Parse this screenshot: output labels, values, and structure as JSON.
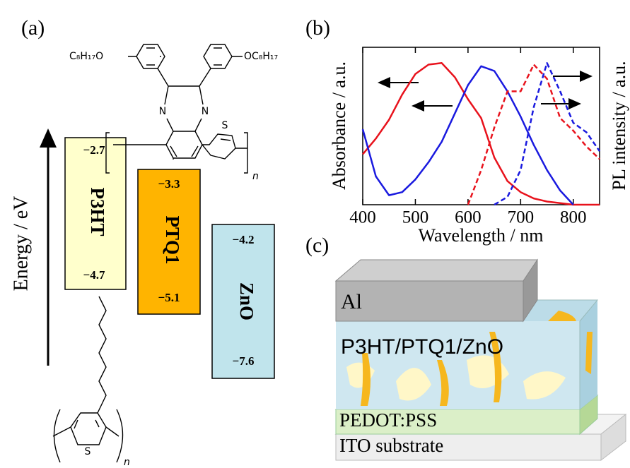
{
  "panel_a": {
    "label": "(a)",
    "energy_axis": "Energy / eV",
    "levels": [
      {
        "name": "P3HT",
        "lumo": "−2.7",
        "homo": "−4.7"
      },
      {
        "name": "PTQ1",
        "lumo": "−3.3",
        "homo": "−5.1"
      },
      {
        "name": "ZnO",
        "lumo": "−4.2",
        "homo": "−7.6"
      }
    ],
    "ptq1_structure": {
      "left_chain": "C₈H₁₇O",
      "right_chain": "OC₈H₁₇",
      "atoms": [
        "N",
        "N",
        "S"
      ],
      "repeat": "n"
    },
    "p3ht_structure": {
      "atoms": [
        "S"
      ],
      "repeat": "n"
    }
  },
  "panel_b": {
    "label": "(b)"
  },
  "chart_data": {
    "type": "line",
    "x_label": "Wavelength / nm",
    "y_label": "Absorbance / a.u.",
    "y2_label": "PL intensity / a.u.",
    "x": [
      400,
      425,
      450,
      475,
      500,
      525,
      550,
      575,
      600,
      625,
      650,
      675,
      700,
      725,
      750,
      775,
      800,
      825,
      850
    ],
    "xlim": [
      400,
      850
    ],
    "xticks": [
      400,
      500,
      600,
      700,
      800
    ],
    "ylim": [
      0,
      1
    ],
    "series": [
      {
        "color": "#e8121c",
        "dash": false,
        "values": [
          0.32,
          0.42,
          0.54,
          0.7,
          0.83,
          0.89,
          0.9,
          0.81,
          0.67,
          0.55,
          0.3,
          0.15,
          0.08,
          0.04,
          0.02,
          0.01,
          0,
          0,
          0
        ]
      },
      {
        "color": "#1a1adf",
        "dash": false,
        "values": [
          0.48,
          0.18,
          0.06,
          0.08,
          0.16,
          0.27,
          0.4,
          0.58,
          0.76,
          0.88,
          0.85,
          0.72,
          0.56,
          0.38,
          0.22,
          0.09,
          0,
          null,
          null
        ]
      },
      {
        "color": "#e8121c",
        "dash": true,
        "values": [
          null,
          null,
          null,
          null,
          null,
          null,
          null,
          null,
          0,
          0.22,
          0.49,
          0.72,
          0.72,
          0.89,
          0.8,
          0.55,
          0.47,
          0.37,
          0.29
        ]
      },
      {
        "color": "#1a1adf",
        "dash": true,
        "values": [
          null,
          null,
          null,
          null,
          null,
          null,
          null,
          null,
          null,
          null,
          0,
          0.05,
          0.22,
          0.62,
          0.9,
          0.72,
          0.52,
          0.46,
          0.34
        ]
      }
    ]
  },
  "panel_c": {
    "label": "(c)",
    "layers": [
      "Al",
      "P3HT/PTQ1/ZnO",
      "PEDOT:PSS",
      "ITO substrate"
    ]
  }
}
